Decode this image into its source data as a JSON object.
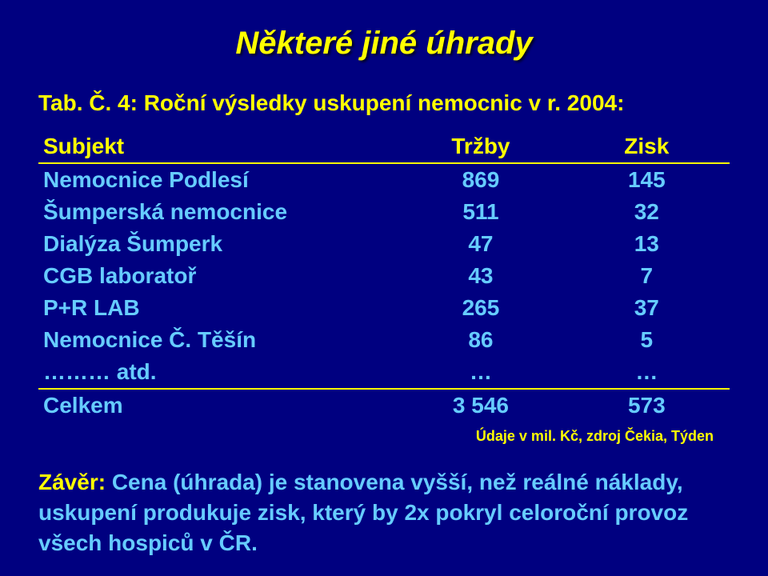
{
  "title": "Některé jiné úhrady",
  "caption": "Tab. Č. 4: Roční výsledky uskupení nemocnic v r. 2004:",
  "table": {
    "headers": {
      "c1": "Subjekt",
      "c2": "Tržby",
      "c3": "Zisk"
    },
    "rows": [
      {
        "c1": "Nemocnice Podlesí",
        "c2": "869",
        "c3": "145"
      },
      {
        "c1": "Šumperská nemocnice",
        "c2": "511",
        "c3": "32"
      },
      {
        "c1": "Dialýza Šumperk",
        "c2": "47",
        "c3": "13"
      },
      {
        "c1": "CGB laboratoř",
        "c2": "43",
        "c3": "7"
      },
      {
        "c1": "P+R LAB",
        "c2": "265",
        "c3": "37"
      },
      {
        "c1": "Nemocnice Č. Těšín",
        "c2": "86",
        "c3": "5"
      },
      {
        "c1": "……… atd.",
        "c2": "…",
        "c3": "…"
      }
    ],
    "total": {
      "c1": "Celkem",
      "c2": "3 546",
      "c3": "573"
    }
  },
  "credit": "Údaje v mil. Kč, zdroj Čekia, Týden",
  "conclusion_label": "Závěr:",
  "conclusion_body": "Cena (úhrada) je stanovena vyšší, než reálné náklady, uskupení produkuje zisk, který by 2x pokryl celoroční  provoz všech hospiců v ČR.",
  "colors": {
    "background": "#000080",
    "accent": "#ffff00",
    "data": "#66ccff"
  }
}
